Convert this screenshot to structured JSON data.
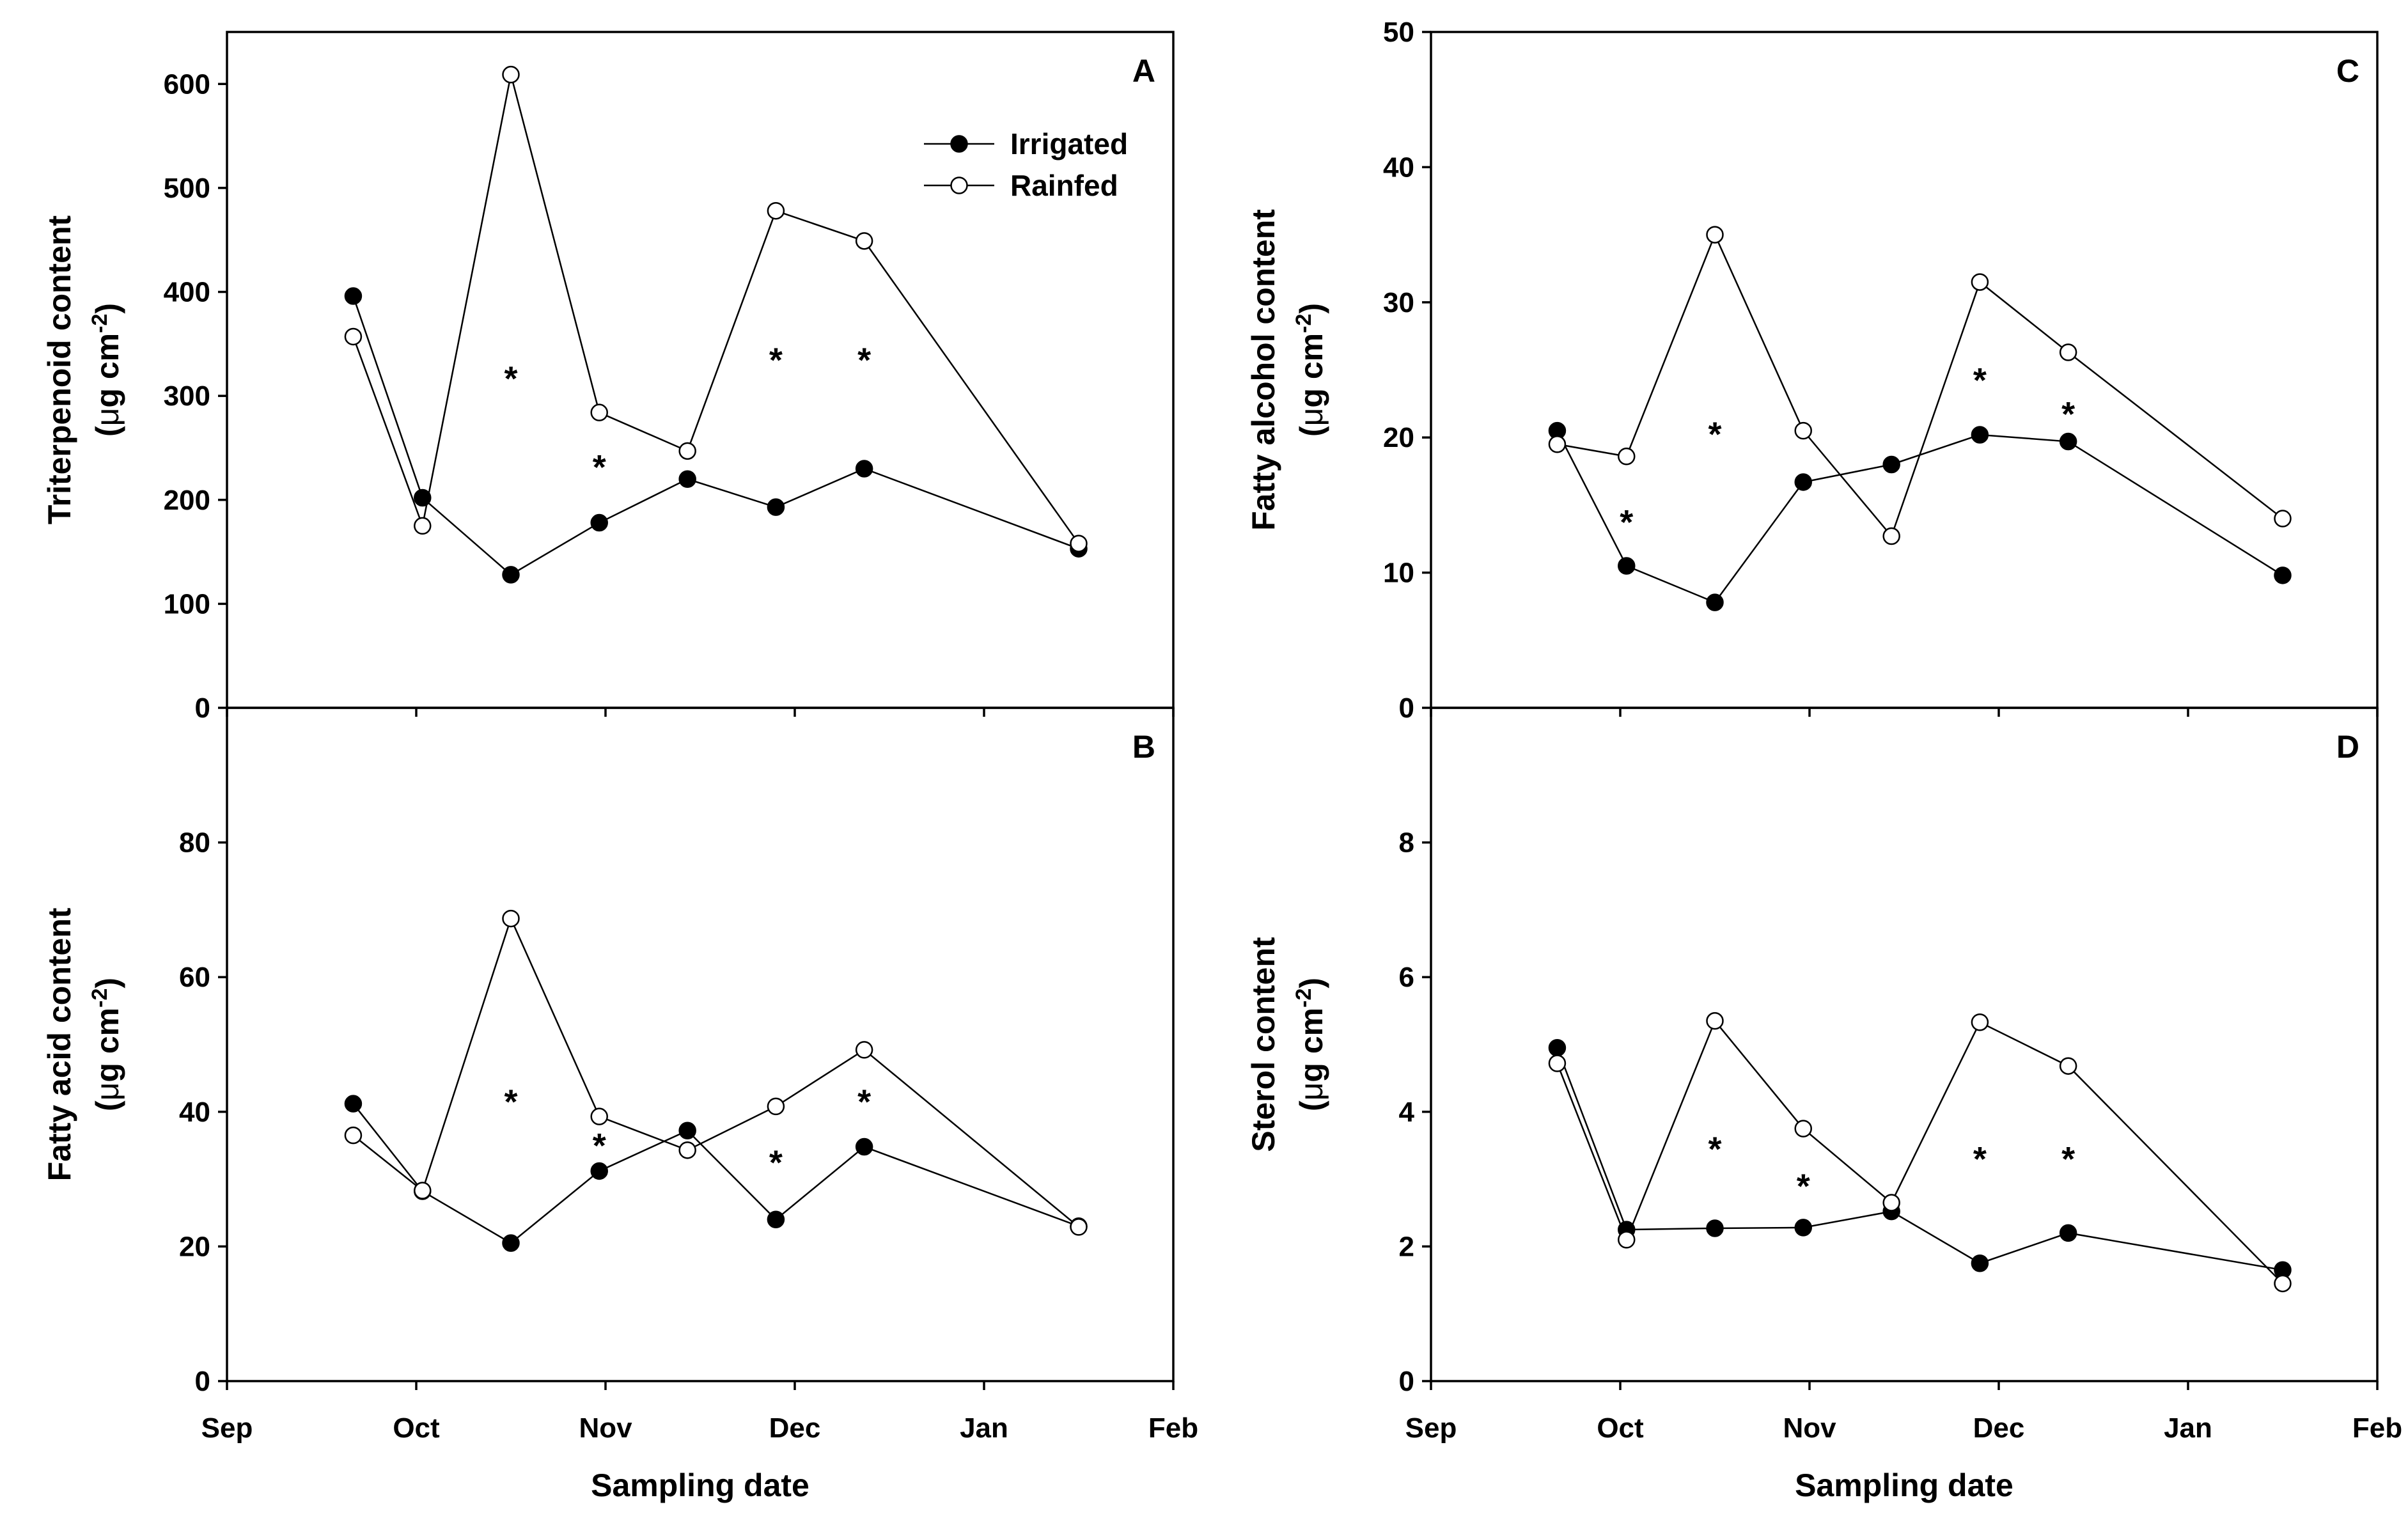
{
  "chart_data": [
    {
      "id": "A",
      "type": "line",
      "panel_label": "A",
      "ylabel_main": "Triterpenoid content",
      "ylabel_unit_prefix": "(",
      "ylabel_unit_mu": "μ",
      "ylabel_unit_mid": "g cm",
      "ylabel_unit_sup": "-2",
      "ylabel_unit_suffix": ")",
      "xlabel": "",
      "ylim": [
        0,
        650
      ],
      "yticks": [
        0,
        100,
        200,
        300,
        400,
        500,
        600
      ],
      "show_x_tick_labels": false,
      "x": [
        0.667,
        1.033,
        1.5,
        1.967,
        2.433,
        2.9,
        3.367,
        4.5
      ],
      "series": [
        {
          "name": "Irrigated",
          "marker": "filled",
          "values": [
            396,
            202,
            128,
            178,
            220,
            193,
            230,
            153
          ]
        },
        {
          "name": "Rainfed",
          "marker": "open",
          "values": [
            357,
            175,
            609,
            284,
            247,
            478,
            449,
            158
          ]
        }
      ],
      "significance": [
        {
          "x": 1.5,
          "y": 320,
          "label": "*"
        },
        {
          "x": 1.967,
          "y": 235,
          "label": "*"
        },
        {
          "x": 2.9,
          "y": 338,
          "label": "*"
        },
        {
          "x": 3.367,
          "y": 338,
          "label": "*"
        }
      ],
      "legend": {
        "position": "top-right",
        "entries": [
          "Irrigated",
          "Rainfed"
        ]
      }
    },
    {
      "id": "B",
      "type": "line",
      "panel_label": "B",
      "ylabel_main": "Fatty acid content",
      "ylabel_unit_prefix": "(",
      "ylabel_unit_mu": "μ",
      "ylabel_unit_mid": "g cm",
      "ylabel_unit_sup": "-2",
      "ylabel_unit_suffix": ")",
      "xlabel": "Sampling date",
      "ylim": [
        0,
        100
      ],
      "yticks": [
        0,
        20,
        40,
        60,
        80
      ],
      "show_x_tick_labels": true,
      "x": [
        0.667,
        1.033,
        1.5,
        1.967,
        2.433,
        2.9,
        3.367,
        4.5
      ],
      "series": [
        {
          "name": "Irrigated",
          "marker": "filled",
          "values": [
            41.2,
            28.2,
            20.5,
            31.2,
            37.2,
            24,
            34.8,
            23
          ]
        },
        {
          "name": "Rainfed",
          "marker": "open",
          "values": [
            36.5,
            28.3,
            68.7,
            39.3,
            34.3,
            40.8,
            49.2,
            22.9
          ]
        }
      ],
      "significance": [
        {
          "x": 1.5,
          "y": 42,
          "label": "*"
        },
        {
          "x": 1.967,
          "y": 35.5,
          "label": "*"
        },
        {
          "x": 2.9,
          "y": 33,
          "label": "*"
        },
        {
          "x": 3.367,
          "y": 42,
          "label": "*"
        }
      ]
    },
    {
      "id": "C",
      "type": "line",
      "panel_label": "C",
      "ylabel_main": "Fatty alcohol content",
      "ylabel_unit_prefix": "(",
      "ylabel_unit_mu": "μ",
      "ylabel_unit_mid": "g cm",
      "ylabel_unit_sup": "-2",
      "ylabel_unit_suffix": ")",
      "xlabel": "",
      "ylim": [
        0,
        50
      ],
      "yticks": [
        0,
        10,
        20,
        30,
        40,
        50
      ],
      "show_x_tick_labels": false,
      "x": [
        0.667,
        1.033,
        1.5,
        1.967,
        2.433,
        2.9,
        3.367,
        4.5
      ],
      "series": [
        {
          "name": "Irrigated",
          "marker": "filled",
          "values": [
            20.5,
            10.5,
            7.8,
            16.7,
            18,
            20.2,
            19.7,
            9.8
          ]
        },
        {
          "name": "Rainfed",
          "marker": "open",
          "values": [
            19.5,
            18.6,
            35,
            20.5,
            12.7,
            31.5,
            26.3,
            14
          ]
        }
      ],
      "significance": [
        {
          "x": 1.033,
          "y": 14,
          "label": "*"
        },
        {
          "x": 1.5,
          "y": 20.5,
          "label": "*"
        },
        {
          "x": 2.9,
          "y": 24.5,
          "label": "*"
        },
        {
          "x": 3.367,
          "y": 22,
          "label": "*"
        }
      ]
    },
    {
      "id": "D",
      "type": "line",
      "panel_label": "D",
      "ylabel_main": "Sterol content",
      "ylabel_unit_prefix": "(",
      "ylabel_unit_mu": "μ",
      "ylabel_unit_mid": "g cm",
      "ylabel_unit_sup": "-2",
      "ylabel_unit_suffix": ")",
      "xlabel": "Sampling date",
      "ylim": [
        0,
        10
      ],
      "yticks": [
        0,
        2,
        4,
        6,
        8
      ],
      "show_x_tick_labels": true,
      "x": [
        0.667,
        1.033,
        1.5,
        1.967,
        2.433,
        2.9,
        3.367,
        4.5
      ],
      "series": [
        {
          "name": "Irrigated",
          "marker": "filled",
          "values": [
            4.95,
            2.25,
            2.27,
            2.28,
            2.52,
            1.75,
            2.2,
            1.65
          ]
        },
        {
          "name": "Rainfed",
          "marker": "open",
          "values": [
            4.72,
            2.1,
            5.35,
            3.75,
            2.65,
            5.33,
            4.68,
            1.45
          ]
        }
      ],
      "significance": [
        {
          "x": 1.5,
          "y": 3.5,
          "label": "*"
        },
        {
          "x": 1.967,
          "y": 2.95,
          "label": "*"
        },
        {
          "x": 2.9,
          "y": 3.35,
          "label": "*"
        },
        {
          "x": 3.367,
          "y": 3.35,
          "label": "*"
        }
      ]
    }
  ],
  "x_axis": {
    "xlim": [
      0,
      5
    ],
    "tick_labels": [
      "Sep",
      "Oct",
      "Nov",
      "Dec",
      "Jan",
      "Feb"
    ]
  }
}
